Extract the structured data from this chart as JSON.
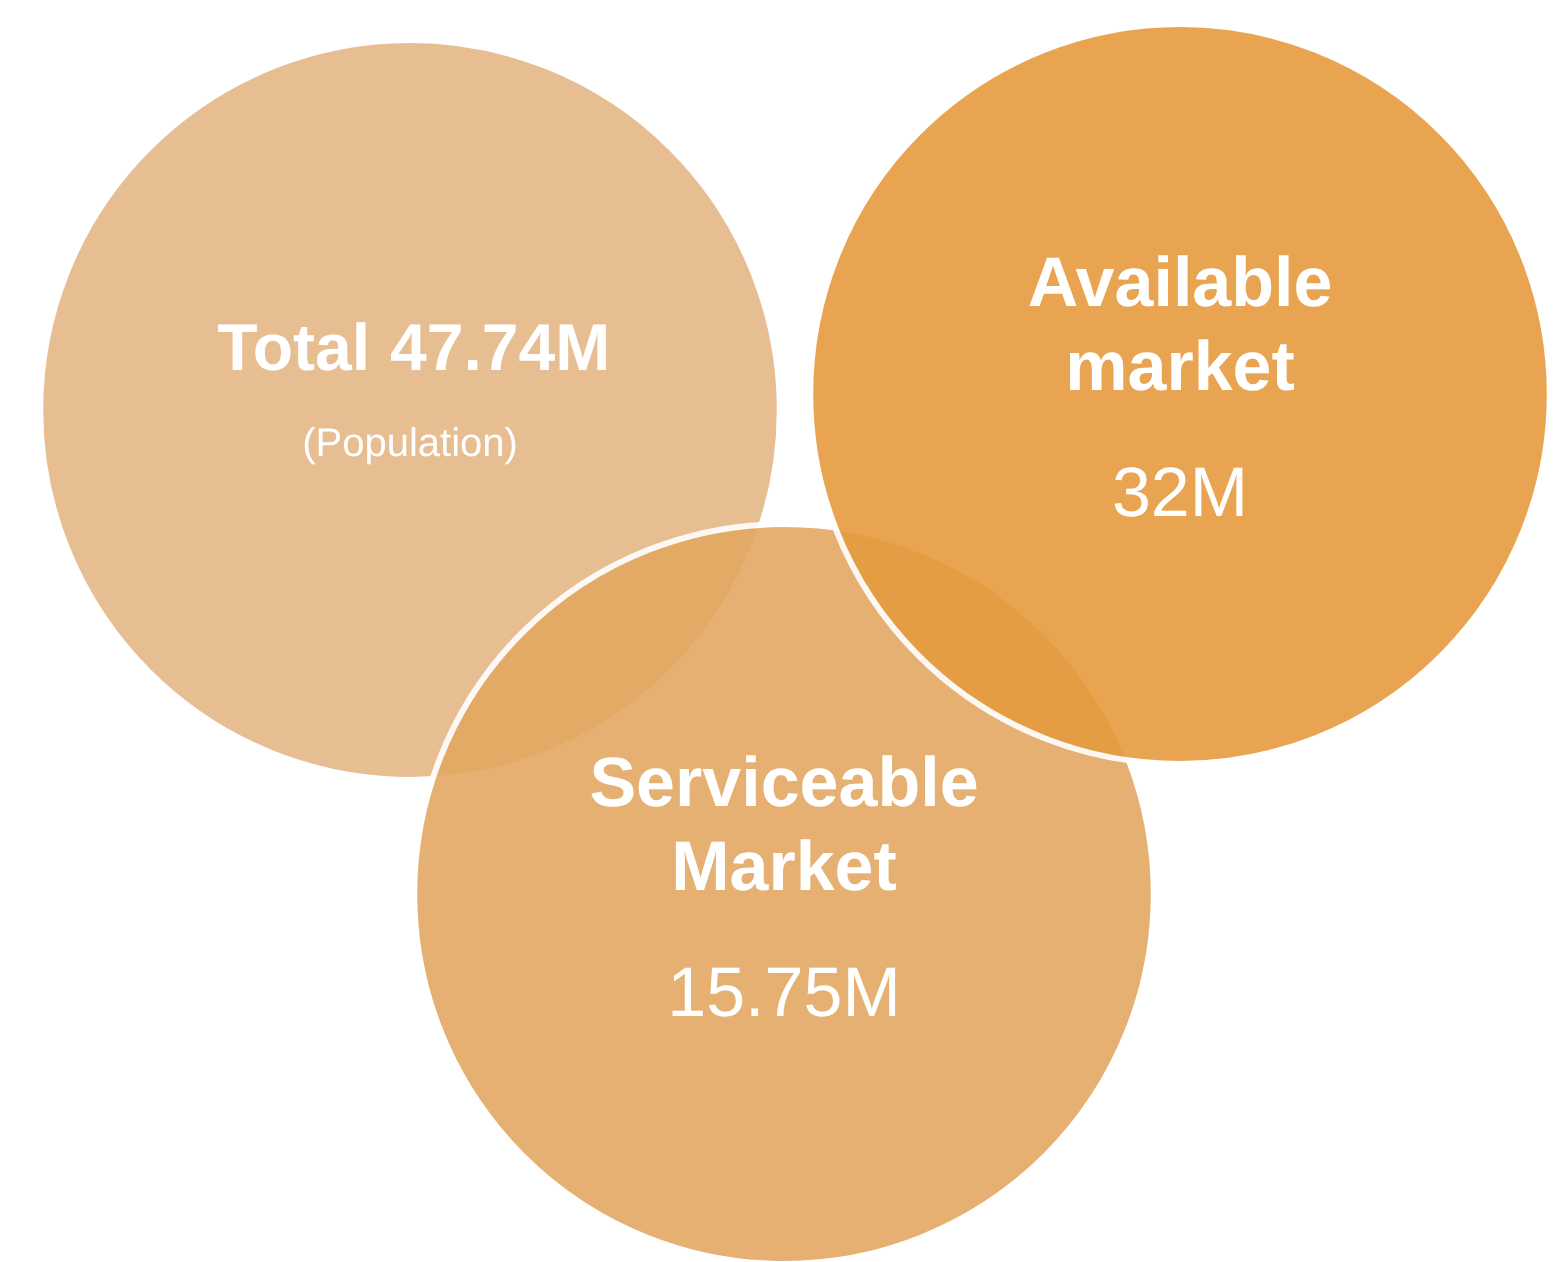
{
  "chart_data": {
    "type": "other",
    "categories": [
      "Total",
      "Available market",
      "Serviceable Market"
    ],
    "values": [
      47.74,
      32,
      15.75
    ],
    "value_labels": [
      "47.74M",
      "32M",
      "15.75M"
    ],
    "colors": [
      "#e5b886",
      "#e69b3f",
      "#e3a862"
    ],
    "annotations": [
      "(Population)"
    ]
  }
}
